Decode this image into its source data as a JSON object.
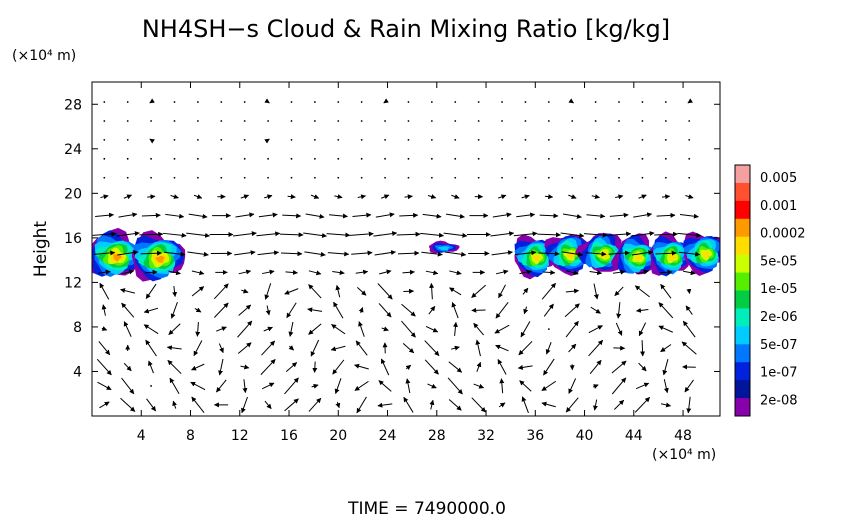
{
  "chart_data": {
    "type": "heatmap",
    "title": "NH4SH−s Cloud & Rain Mixing Ratio [kg/kg]",
    "ylabel": "Height",
    "y_unit": "(×10⁴ m)",
    "x_unit": "(×10⁴ m)",
    "time_label": "TIME  =  7490000.0",
    "xlim": [
      0,
      51
    ],
    "ylim": [
      0,
      30
    ],
    "x_ticks": [
      4,
      8,
      12,
      16,
      20,
      24,
      28,
      32,
      36,
      40,
      44,
      48
    ],
    "y_ticks": [
      4,
      8,
      12,
      16,
      20,
      24,
      28
    ],
    "x_tick_labels": [
      "4",
      "8",
      "12",
      "16",
      "20",
      "24",
      "28",
      "32",
      "36",
      "40",
      "44",
      "48"
    ],
    "y_tick_labels": [
      "4",
      "8",
      "12",
      "16",
      "20",
      "24",
      "28"
    ],
    "colorbar": {
      "labels": [
        "0.005",
        "0.001",
        "0.0002",
        "5e-05",
        "1e-05",
        "2e-06",
        "5e-07",
        "1e-07",
        "2e-08"
      ],
      "colors": [
        "#f4a0a0",
        "#ff5030",
        "#ff0000",
        "#ff9900",
        "#ffdd00",
        "#ccff00",
        "#55ee00",
        "#00cc44",
        "#00eebb",
        "#00ccff",
        "#0077ff",
        "#0022dd",
        "#00159a",
        "#8800aa"
      ]
    },
    "clouds": [
      {
        "x": [
          0,
          7.0
        ],
        "y": [
          12.5,
          16.5
        ],
        "max_level": "0.001"
      },
      {
        "x": [
          27.5,
          29.5
        ],
        "y": [
          14.8,
          15.8
        ],
        "max_level": "1e-07"
      },
      {
        "x": [
          34.5,
          51
        ],
        "y": [
          12.8,
          16.3
        ],
        "max_level": "0.0002"
      }
    ],
    "wind_vectors": true
  }
}
